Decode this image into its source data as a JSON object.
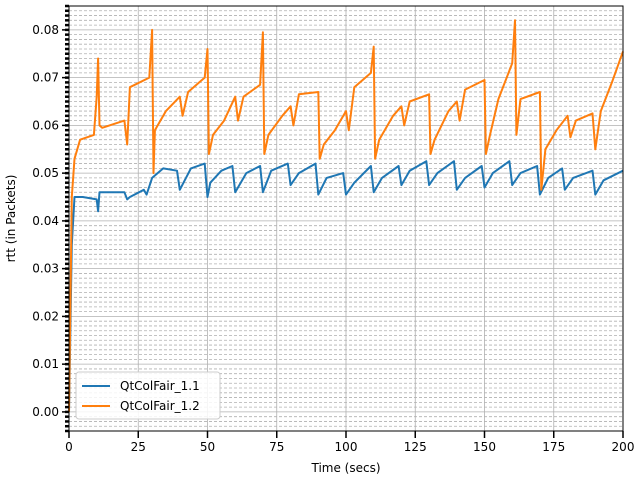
{
  "chart_data": {
    "type": "line",
    "xlabel": "Time (secs)",
    "ylabel": "rtt (in Packets)",
    "xlim": [
      0,
      200
    ],
    "ylim": [
      -0.004,
      0.085
    ],
    "x_ticks": [
      "0",
      "25",
      "50",
      "75",
      "100",
      "125",
      "150",
      "175",
      "200"
    ],
    "y_ticks": [
      "0.00",
      "0.01",
      "0.02",
      "0.03",
      "0.04",
      "0.05",
      "0.06",
      "0.07",
      "0.08"
    ],
    "grid": true,
    "legend_position": "lower-left",
    "series": [
      {
        "name": "QtColFair_1.1",
        "color": "#1f77b4",
        "points": [
          [
            0,
            0.0
          ],
          [
            1,
            0.035
          ],
          [
            2,
            0.045
          ],
          [
            5,
            0.045
          ],
          [
            10,
            0.0445
          ],
          [
            10.5,
            0.042
          ],
          [
            11,
            0.046
          ],
          [
            20,
            0.046
          ],
          [
            21,
            0.0445
          ],
          [
            22,
            0.045
          ],
          [
            27,
            0.0465
          ],
          [
            28,
            0.0455
          ],
          [
            30,
            0.049
          ],
          [
            34,
            0.051
          ],
          [
            39,
            0.0505
          ],
          [
            40,
            0.0465
          ],
          [
            44,
            0.051
          ],
          [
            49,
            0.052
          ],
          [
            50,
            0.045
          ],
          [
            51,
            0.048
          ],
          [
            55,
            0.0505
          ],
          [
            59,
            0.0515
          ],
          [
            60,
            0.046
          ],
          [
            64,
            0.05
          ],
          [
            69,
            0.0515
          ],
          [
            70,
            0.046
          ],
          [
            73,
            0.0505
          ],
          [
            79,
            0.052
          ],
          [
            80,
            0.0475
          ],
          [
            83,
            0.05
          ],
          [
            89,
            0.052
          ],
          [
            90,
            0.0455
          ],
          [
            93,
            0.049
          ],
          [
            99,
            0.05
          ],
          [
            100,
            0.0455
          ],
          [
            103,
            0.048
          ],
          [
            109,
            0.0515
          ],
          [
            110,
            0.046
          ],
          [
            113,
            0.049
          ],
          [
            119,
            0.0515
          ],
          [
            120,
            0.0475
          ],
          [
            123,
            0.0505
          ],
          [
            129,
            0.0525
          ],
          [
            130,
            0.0475
          ],
          [
            133,
            0.05
          ],
          [
            139,
            0.0525
          ],
          [
            140,
            0.0465
          ],
          [
            143,
            0.049
          ],
          [
            149,
            0.0515
          ],
          [
            150,
            0.047
          ],
          [
            153,
            0.05
          ],
          [
            159,
            0.0525
          ],
          [
            160,
            0.0475
          ],
          [
            163,
            0.05
          ],
          [
            169,
            0.0515
          ],
          [
            170,
            0.0455
          ],
          [
            173,
            0.049
          ],
          [
            178,
            0.051
          ],
          [
            179,
            0.0465
          ],
          [
            182,
            0.049
          ],
          [
            189,
            0.0505
          ],
          [
            190,
            0.0455
          ],
          [
            193,
            0.0485
          ],
          [
            200,
            0.0505
          ]
        ]
      },
      {
        "name": "QtColFair_1.2",
        "color": "#ff7f0e",
        "points": [
          [
            0,
            0.0
          ],
          [
            1,
            0.045
          ],
          [
            2,
            0.053
          ],
          [
            4,
            0.057
          ],
          [
            9,
            0.058
          ],
          [
            10,
            0.066
          ],
          [
            10.5,
            0.074
          ],
          [
            11,
            0.06
          ],
          [
            12,
            0.0595
          ],
          [
            20,
            0.061
          ],
          [
            21,
            0.056
          ],
          [
            22,
            0.068
          ],
          [
            29,
            0.07
          ],
          [
            30,
            0.08
          ],
          [
            30.5,
            0.05
          ],
          [
            31,
            0.059
          ],
          [
            35,
            0.063
          ],
          [
            40,
            0.066
          ],
          [
            41,
            0.062
          ],
          [
            43,
            0.067
          ],
          [
            49,
            0.07
          ],
          [
            50,
            0.076
          ],
          [
            50.5,
            0.054
          ],
          [
            52,
            0.058
          ],
          [
            56,
            0.061
          ],
          [
            60,
            0.066
          ],
          [
            61,
            0.061
          ],
          [
            63,
            0.066
          ],
          [
            69,
            0.0685
          ],
          [
            70,
            0.0795
          ],
          [
            70.5,
            0.054
          ],
          [
            72,
            0.058
          ],
          [
            77,
            0.062
          ],
          [
            80,
            0.064
          ],
          [
            81,
            0.06
          ],
          [
            83,
            0.0665
          ],
          [
            90,
            0.067
          ],
          [
            90.5,
            0.053
          ],
          [
            92,
            0.056
          ],
          [
            96,
            0.059
          ],
          [
            100,
            0.063
          ],
          [
            101,
            0.059
          ],
          [
            103,
            0.068
          ],
          [
            109,
            0.071
          ],
          [
            110,
            0.0765
          ],
          [
            110.5,
            0.053
          ],
          [
            112,
            0.057
          ],
          [
            117,
            0.062
          ],
          [
            120,
            0.064
          ],
          [
            121,
            0.06
          ],
          [
            123,
            0.065
          ],
          [
            130,
            0.0665
          ],
          [
            130.5,
            0.054
          ],
          [
            132,
            0.057
          ],
          [
            137,
            0.063
          ],
          [
            140,
            0.065
          ],
          [
            141,
            0.061
          ],
          [
            143,
            0.0675
          ],
          [
            150,
            0.0695
          ],
          [
            150.5,
            0.054
          ],
          [
            152,
            0.058
          ],
          [
            155,
            0.0655
          ],
          [
            160,
            0.073
          ],
          [
            161,
            0.082
          ],
          [
            161.5,
            0.058
          ],
          [
            163,
            0.0655
          ],
          [
            170,
            0.067
          ],
          [
            170.5,
            0.0465
          ],
          [
            172,
            0.055
          ],
          [
            176,
            0.059
          ],
          [
            180,
            0.062
          ],
          [
            181,
            0.0575
          ],
          [
            183,
            0.061
          ],
          [
            189,
            0.0625
          ],
          [
            190,
            0.055
          ],
          [
            192,
            0.063
          ],
          [
            196,
            0.069
          ],
          [
            200,
            0.0755
          ]
        ]
      }
    ]
  }
}
